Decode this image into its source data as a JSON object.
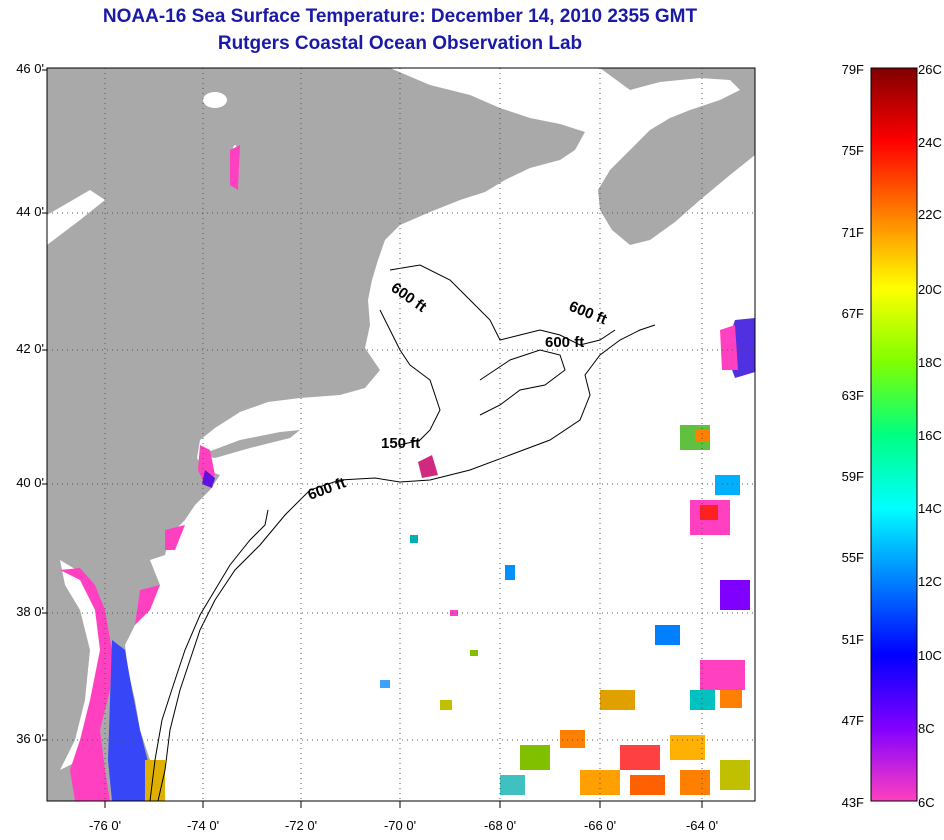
{
  "title_line1": "NOAA-16 Sea Surface Temperature:  December 14, 2010 2355 GMT",
  "title_line2": "Rutgers Coastal Ocean Observation Lab",
  "lat_labels": [
    "46 0'",
    "44 0'",
    "42 0'",
    "40 0'",
    "38 0'",
    "36 0'"
  ],
  "lon_labels": [
    "-76 0'",
    "-74 0'",
    "-72 0'",
    "-70 0'",
    "-68 0'",
    "-66 0'",
    "-64 0'"
  ],
  "contour_labels": [
    "600 ft",
    "600 ft",
    "600 ft",
    "150 ft",
    "600 ft"
  ],
  "colorbar": {
    "fahrenheit": [
      "79F",
      "75F",
      "71F",
      "67F",
      "63F",
      "59F",
      "55F",
      "51F",
      "47F",
      "43F"
    ],
    "celsius": [
      "26C",
      "24C",
      "22C",
      "20C",
      "18C",
      "16C",
      "14C",
      "12C",
      "10C",
      "8C",
      "6C"
    ],
    "stops": [
      "#ff40c0",
      "#8000ff",
      "#0000ff",
      "#0080ff",
      "#00ffff",
      "#00ff80",
      "#80ff00",
      "#ffff00",
      "#ff8000",
      "#ff0000",
      "#800000"
    ]
  },
  "colors": {
    "land": "#a9a9a9",
    "title": "#1a1aa6",
    "ocean": "#ffffff"
  }
}
